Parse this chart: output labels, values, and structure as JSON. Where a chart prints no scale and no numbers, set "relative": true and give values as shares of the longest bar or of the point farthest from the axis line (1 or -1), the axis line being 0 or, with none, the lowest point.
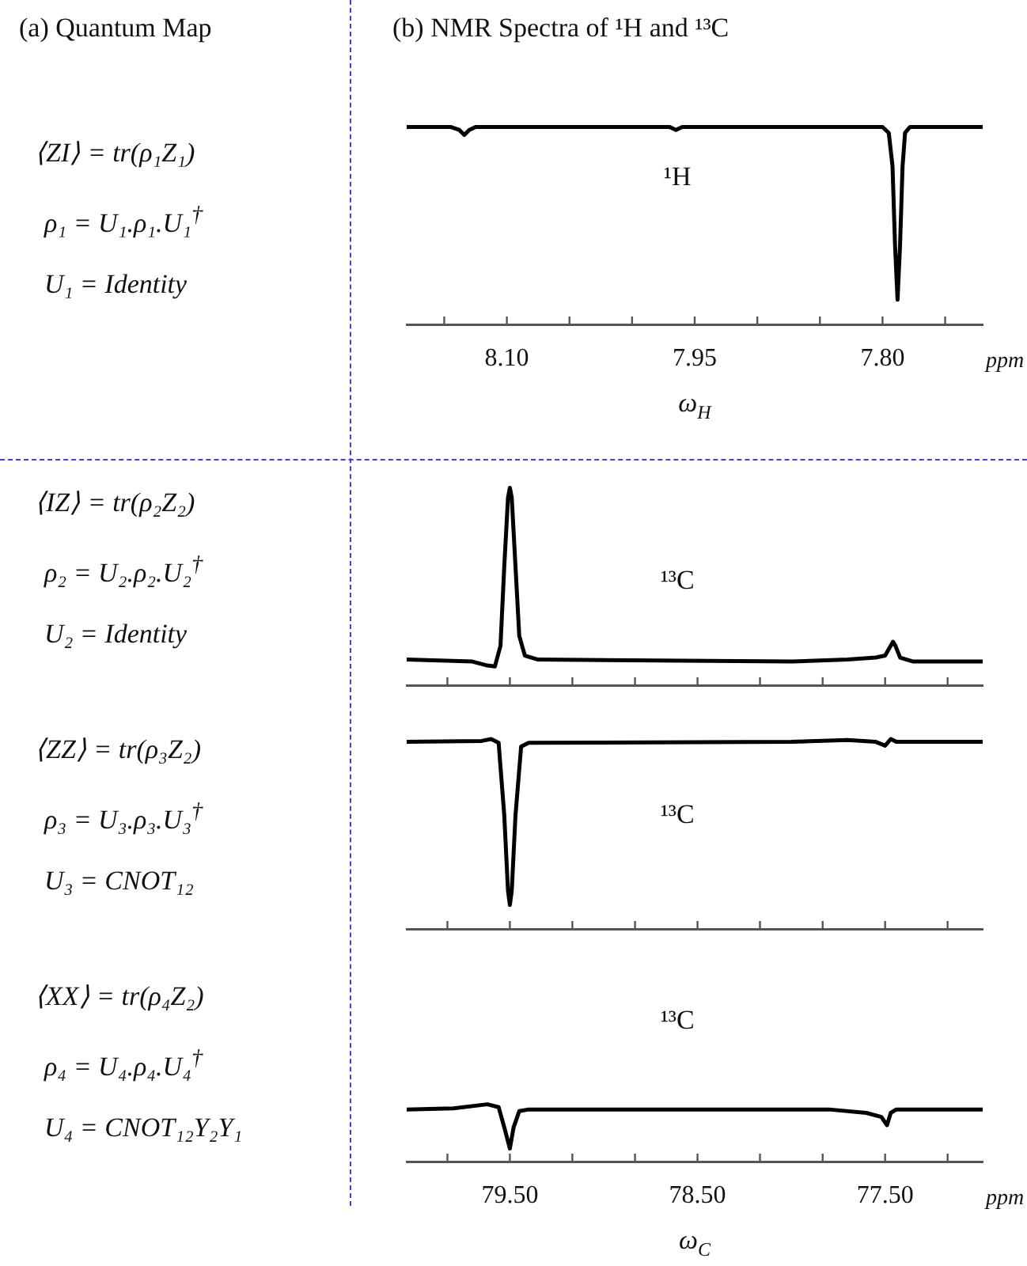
{
  "chart_data": [
    {
      "type": "other",
      "title": "(a) Quantum Map",
      "annotations": [
        "⟨ZI⟩ = tr(ρ₁Z₁)",
        "ρ₁ = U₁.ρ₁.U₁$^{†}$",
        "U₁ = Identity",
        "⟨IZ⟩ = tr(ρ₂Z₂)",
        "ρ₂ = U₂.ρ₂.U₂$^{†}$",
        "U₂ = Identity",
        "⟨ZZ⟩ = tr(ρ₃Z₂)",
        "ρ₃ = U₃.ρ₃.U₃$^{†}$",
        "U₃ = CNOT₁₂",
        "⟨XX⟩ = tr(ρ₄Z₂)",
        "ρ₄ = U₄.ρ₄.U₄$^{†}$",
        "U₄ = CNOT₁₂Y₂Y₁"
      ]
    },
    {
      "type": "line",
      "title": "(b) NMR Spectra of ¹H and ¹³C",
      "xlabel": "ω$_{H}$",
      "relative": true,
      "color": "#000000",
      "x": [
        8.18,
        8.145,
        8.138,
        8.134,
        8.13,
        8.125,
        7.97,
        7.965,
        7.96,
        7.8,
        7.795,
        7.792,
        7.79,
        7.788,
        7.786,
        7.784,
        7.782,
        7.778,
        7.72
      ],
      "values": [
        1,
        1,
        0.985,
        0.96,
        0.985,
        1,
        1,
        0.985,
        1,
        1,
        0.97,
        0.8,
        0.4,
        0.125,
        0.4,
        0.8,
        0.97,
        1,
        1
      ],
      "xlim": [
        8.18,
        7.72
      ],
      "xticks": [
        {
          "value": 8.15,
          "label": null
        },
        {
          "value": 8.1,
          "label": "8.10"
        },
        {
          "value": 8.05,
          "label": null
        },
        {
          "value": 8.0,
          "label": null
        },
        7.95,
        {
          "value": 7.9,
          "label": null
        },
        {
          "value": 7.85,
          "label": null
        },
        {
          "value": 7.8,
          "label": "7.80"
        },
        {
          "value": 7.75,
          "label": null
        }
      ],
      "annotations": [
        "¹H",
        "ppm"
      ]
    },
    {
      "type": "line",
      "relative": true,
      "color": "#000000",
      "tick_labels": false,
      "x": [
        80.05,
        79.7,
        79.62,
        79.58,
        79.55,
        79.53,
        79.51,
        79.5,
        79.49,
        79.47,
        79.45,
        79.42,
        79.35,
        78.0,
        77.7,
        77.55,
        77.5,
        77.47,
        77.458,
        77.445,
        77.42,
        77.35,
        76.98
      ],
      "values": [
        0.13,
        0.12,
        0.1,
        0.095,
        0.2,
        0.6,
        0.95,
        1,
        0.95,
        0.6,
        0.25,
        0.15,
        0.13,
        0.12,
        0.13,
        0.14,
        0.15,
        0.2,
        0.22,
        0.2,
        0.14,
        0.12,
        0.12
      ],
      "xlim": [
        80.05,
        76.98
      ],
      "xticks": [
        {
          "value": 79.833,
          "label": null
        },
        {
          "value": 79.5,
          "label": null
        },
        {
          "value": 79.167,
          "label": null
        },
        {
          "value": 78.833,
          "label": null
        },
        {
          "value": 78.5,
          "label": null
        },
        {
          "value": 78.167,
          "label": null
        },
        {
          "value": 77.833,
          "label": null
        },
        {
          "value": 77.5,
          "label": null
        },
        {
          "value": 77.167,
          "label": null
        }
      ],
      "annotations": [
        "¹³C"
      ]
    },
    {
      "type": "line",
      "relative": true,
      "color": "#000000",
      "tick_labels": false,
      "x": [
        80.05,
        79.65,
        79.6,
        79.56,
        79.53,
        79.51,
        79.5,
        79.49,
        79.47,
        79.44,
        79.4,
        78.0,
        77.7,
        77.55,
        77.5,
        77.47,
        77.44,
        76.98
      ],
      "values": [
        0.985,
        0.99,
        1,
        0.98,
        0.6,
        0.2,
        0.126,
        0.2,
        0.6,
        0.96,
        0.98,
        0.985,
        0.995,
        0.985,
        0.965,
        1,
        0.985,
        0.985
      ],
      "xlim": [
        80.05,
        76.98
      ],
      "xticks": [
        {
          "value": 79.833,
          "label": null
        },
        {
          "value": 79.5,
          "label": null
        },
        {
          "value": 79.167,
          "label": null
        },
        {
          "value": 78.833,
          "label": null
        },
        {
          "value": 78.5,
          "label": null
        },
        {
          "value": 78.167,
          "label": null
        },
        {
          "value": 77.833,
          "label": null
        },
        {
          "value": 77.5,
          "label": null
        },
        {
          "value": 77.167,
          "label": null
        }
      ],
      "annotations": [
        "¹³C"
      ]
    },
    {
      "type": "line",
      "xlabel": "ω$_{C}$",
      "relative": true,
      "color": "#000000",
      "x": [
        80.05,
        79.8,
        79.62,
        79.56,
        79.53,
        79.5,
        79.48,
        79.45,
        79.4,
        77.8,
        77.6,
        77.52,
        77.49,
        77.47,
        77.44,
        76.98
      ],
      "values": [
        0.91,
        0.93,
        1,
        0.95,
        0.6,
        0.227,
        0.6,
        0.88,
        0.91,
        0.91,
        0.85,
        0.78,
        0.636,
        0.85,
        0.91,
        0.91
      ],
      "xlim": [
        80.05,
        76.98
      ],
      "xticks": [
        {
          "value": 79.833,
          "label": null
        },
        {
          "value": 79.5,
          "label": "79.50"
        },
        {
          "value": 79.167,
          "label": null
        },
        {
          "value": 78.833,
          "label": null
        },
        {
          "value": 78.5,
          "label": "78.50"
        },
        {
          "value": 78.167,
          "label": null
        },
        {
          "value": 77.833,
          "label": null
        },
        {
          "value": 77.5,
          "label": "77.50"
        },
        {
          "value": 77.167,
          "label": null
        }
      ],
      "annotations": [
        "¹³C",
        "ppm"
      ]
    }
  ]
}
